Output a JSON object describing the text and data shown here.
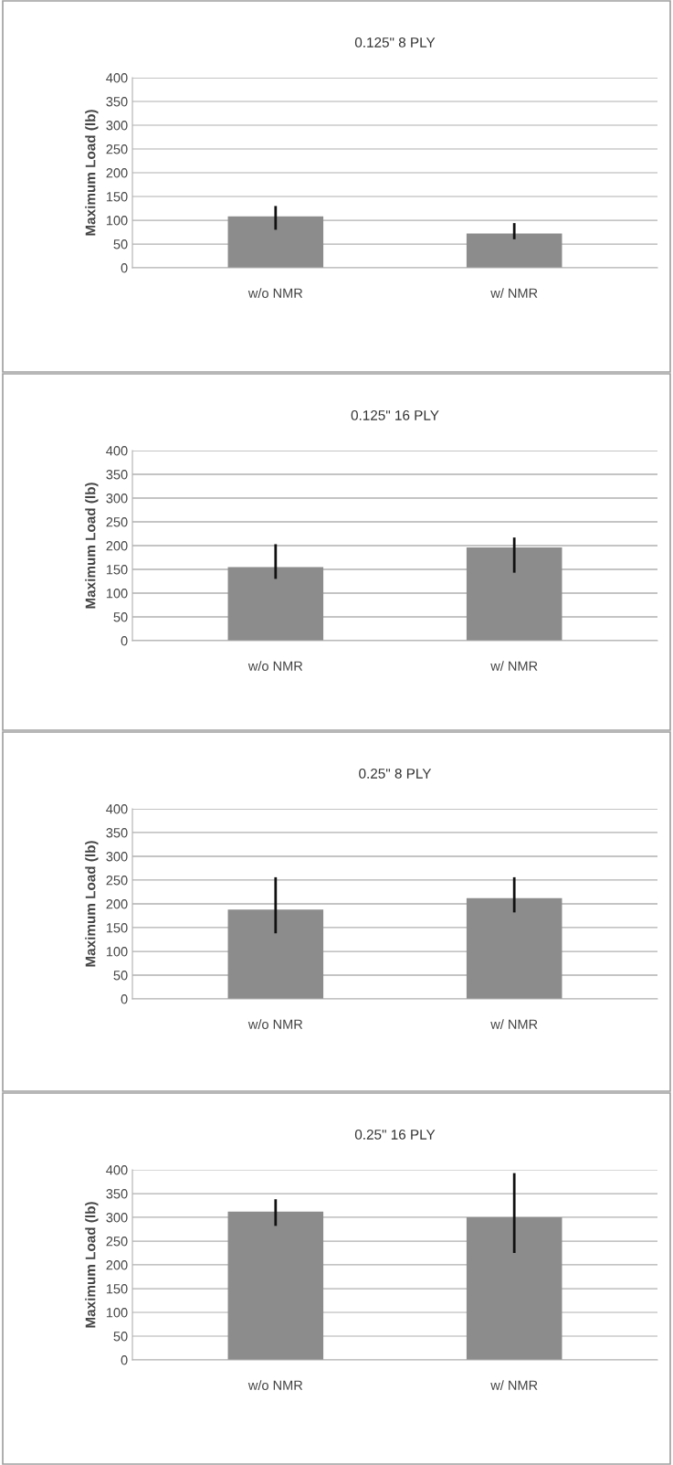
{
  "chart_data": [
    {
      "type": "bar",
      "title": "0.125\" 8 PLY",
      "ylabel": "Maximum Load (lb)",
      "categories": [
        "w/o NMR",
        "w/ NMR"
      ],
      "values": [
        108,
        72
      ],
      "errors": [
        [
          80,
          130
        ],
        [
          60,
          94
        ]
      ],
      "color": "#8c8c8c",
      "ylim": [
        0,
        400
      ],
      "yticks": [
        0,
        50,
        100,
        150,
        200,
        250,
        300,
        350,
        400
      ],
      "grid": "y"
    },
    {
      "type": "bar",
      "title": "0.125\" 16 PLY",
      "ylabel": "Maximum Load (lb)",
      "categories": [
        "w/o NMR",
        "w/ NMR"
      ],
      "values": [
        155,
        196
      ],
      "errors": [
        [
          130,
          203
        ],
        [
          143,
          217
        ]
      ],
      "color": "#8c8c8c",
      "ylim": [
        0,
        400
      ],
      "yticks": [
        0,
        50,
        100,
        150,
        200,
        250,
        300,
        350,
        400
      ],
      "grid": "y"
    },
    {
      "type": "bar",
      "title": "0.25\" 8 PLY",
      "ylabel": "Maximum Load (lb)",
      "categories": [
        "w/o NMR",
        "w/ NMR"
      ],
      "values": [
        188,
        212
      ],
      "errors": [
        [
          138,
          256
        ],
        [
          182,
          256
        ]
      ],
      "color": "#8c8c8c",
      "ylim": [
        0,
        400
      ],
      "yticks": [
        0,
        50,
        100,
        150,
        200,
        250,
        300,
        350,
        400
      ],
      "grid": "y"
    },
    {
      "type": "bar",
      "title": "0.25\" 16 PLY",
      "ylabel": "Maximum Load (lb)",
      "categories": [
        "w/o NMR",
        "w/ NMR"
      ],
      "values": [
        312,
        300
      ],
      "errors": [
        [
          282,
          338
        ],
        [
          225,
          393
        ]
      ],
      "color": "#8c8c8c",
      "ylim": [
        0,
        400
      ],
      "yticks": [
        0,
        50,
        100,
        150,
        200,
        250,
        300,
        350,
        400
      ],
      "grid": "y"
    }
  ]
}
